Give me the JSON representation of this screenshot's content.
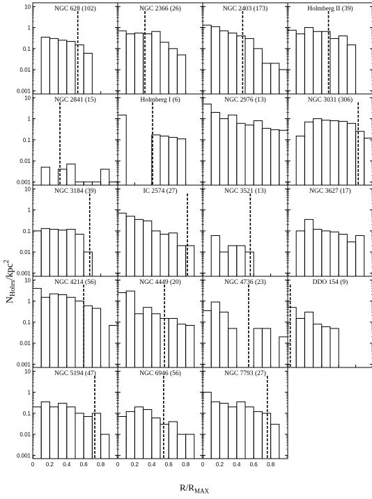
{
  "figure": {
    "ylabel_main": "N",
    "ylabel_sub": "Holes",
    "ylabel_tail": "/kpc",
    "ylabel_sup": "2",
    "xlabel_main": "R/R",
    "xlabel_sub": "MAX",
    "y_ticks": [
      "10",
      "1",
      "0.1",
      "0.01",
      "0.001"
    ],
    "x_ticks": [
      "0",
      "0.2",
      "0.4",
      "0.6",
      "0.8"
    ]
  },
  "chart_data": [
    {
      "type": "bar",
      "title": "NGC 628 (102)",
      "bin_width": 0.1,
      "x_start": 0.1,
      "values": [
        0.35,
        0.3,
        0.25,
        0.22,
        0.15,
        0.06
      ],
      "r_max_line": 0.53
    },
    {
      "type": "bar",
      "title": "NGC 2366 (26)",
      "bin_width": 0.1,
      "x_start": 0.0,
      "values": [
        0.7,
        0.5,
        0.55,
        0.5,
        0.65,
        0.2,
        0.1,
        0.05
      ],
      "r_max_line": 0.32
    },
    {
      "type": "bar",
      "title": "NGC 2403 (173)",
      "bin_width": 0.1,
      "x_start": 0.0,
      "values": [
        1.3,
        1.1,
        0.7,
        0.55,
        0.4,
        0.3,
        0.1,
        0.02,
        0.02,
        0.01
      ],
      "r_max_line": 0.47
    },
    {
      "type": "bar",
      "title": "Holmberg II (39)",
      "bin_width": 0.1,
      "x_start": 0.0,
      "values": [
        0.75,
        0.5,
        1.0,
        0.65,
        0.65,
        0.3,
        0.4,
        0.15
      ],
      "r_max_line": 0.48
    },
    {
      "type": "bar",
      "title": "NGC 2841 (15)",
      "bin_width": 0.1,
      "x_start": 0.1,
      "values": [
        0.005,
        null,
        0.004,
        0.007,
        0.001,
        0.001,
        0.001,
        0.004,
        0.001
      ],
      "r_max_line": 0.32
    },
    {
      "type": "bar",
      "title": "Holmberg I (6)",
      "bin_width": 0.1,
      "x_start": 0.0,
      "values": [
        1.5,
        null,
        null,
        null,
        0.17,
        0.15,
        0.13,
        0.11
      ],
      "r_max_line": 0.41
    },
    {
      "type": "bar",
      "title": "NGC 2976 (13)",
      "bin_width": 0.1,
      "x_start": 0.0,
      "values": [
        5.0,
        2.0,
        1.0,
        1.5,
        0.6,
        0.5,
        0.8,
        0.35,
        0.3,
        0.28
      ],
      "r_max_line": null
    },
    {
      "type": "bar",
      "title": "NGC 3031 (306)",
      "bin_width": 0.1,
      "x_start": 0.1,
      "values": [
        0.15,
        0.7,
        1.0,
        0.85,
        0.8,
        0.75,
        0.6,
        0.25,
        0.12
      ],
      "r_max_line": 0.83
    },
    {
      "type": "bar",
      "title": "NGC 3184 (39)",
      "bin_width": 0.1,
      "x_start": 0.0,
      "values": [
        0.1,
        0.13,
        0.12,
        0.11,
        0.12,
        0.07,
        0.01
      ],
      "r_max_line": 0.67
    },
    {
      "type": "bar",
      "title": "IC 2574 (27)",
      "bin_width": 0.1,
      "x_start": 0.0,
      "values": [
        0.7,
        0.5,
        0.35,
        0.3,
        0.1,
        0.07,
        0.08,
        0.02,
        0.02
      ],
      "r_max_line": 0.82
    },
    {
      "type": "bar",
      "title": "NGC 3521 (13)",
      "bin_width": 0.1,
      "x_start": 0.1,
      "values": [
        0.06,
        0.01,
        0.02,
        0.02,
        0.01
      ],
      "r_max_line": 0.56
    },
    {
      "type": "bar",
      "title": "NGC 3627 (17)",
      "bin_width": 0.1,
      "x_start": 0.1,
      "values": [
        0.1,
        0.35,
        0.12,
        0.1,
        0.09,
        0.07,
        0.03,
        0.06
      ],
      "r_max_line": null
    },
    {
      "type": "bar",
      "title": "NGC 4214 (56)",
      "bin_width": 0.1,
      "x_start": 0.0,
      "values": [
        4.0,
        1.5,
        2.2,
        2.0,
        1.5,
        1.0,
        0.6,
        0.45,
        null,
        0.07
      ],
      "r_max_line": 0.6
    },
    {
      "type": "bar",
      "title": "NGC 4449 (20)",
      "bin_width": 0.1,
      "x_start": 0.0,
      "values": [
        2.5,
        3.0,
        0.25,
        0.5,
        0.25,
        0.15,
        0.15,
        0.08,
        0.07
      ],
      "r_max_line": 0.55
    },
    {
      "type": "bar",
      "title": "NGC 4736 (23)",
      "bin_width": 0.1,
      "x_start": 0.0,
      "values": [
        0.35,
        0.9,
        0.3,
        0.05,
        null,
        null,
        0.05,
        0.05,
        null,
        0.02
      ],
      "r_max_line": 0.54
    },
    {
      "type": "bar",
      "title": "DDO 154 (9)",
      "bin_width": 0.1,
      "x_start": 0.0,
      "values": [
        0.5,
        0.15,
        0.3,
        0.08,
        0.06,
        0.05
      ],
      "r_max_line": 0.03
    },
    {
      "type": "bar",
      "title": "NGC 5194 (47)",
      "bin_width": 0.1,
      "x_start": 0.0,
      "values": [
        0.2,
        0.35,
        0.2,
        0.3,
        0.2,
        0.1,
        0.07,
        0.1,
        0.01
      ],
      "r_max_line": 0.73
    },
    {
      "type": "bar",
      "title": "NGC 6946 (56)",
      "bin_width": 0.1,
      "x_start": 0.0,
      "values": [
        0.07,
        0.12,
        0.2,
        0.15,
        0.06,
        0.03,
        0.04,
        0.01,
        0.01
      ],
      "r_max_line": 0.54
    },
    {
      "type": "bar",
      "title": "NGC 7793 (27)",
      "bin_width": 0.1,
      "x_start": 0.0,
      "values": [
        1.0,
        0.35,
        0.3,
        0.2,
        0.35,
        0.2,
        0.12,
        0.1,
        0.03
      ],
      "r_max_line": 0.76
    }
  ]
}
